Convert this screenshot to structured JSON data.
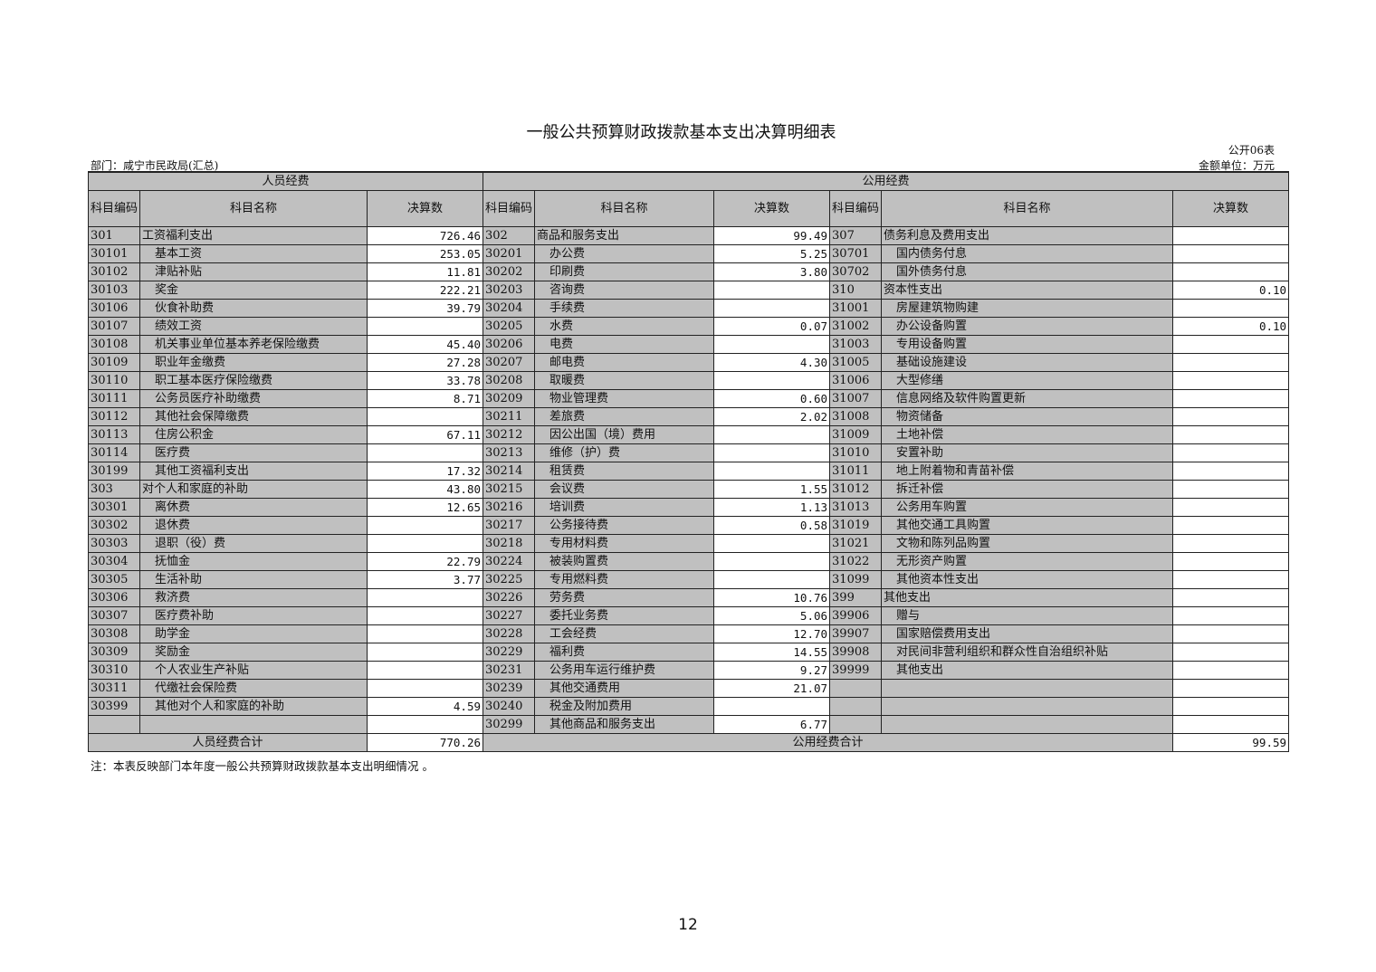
{
  "title": "一般公共预算财政拨款基本支出决算明细表",
  "form_no": "公开06表",
  "department": "部门：咸宁市民政局(汇总)",
  "unit": "金额单位：万元",
  "headers": {
    "personnel": "人员经费",
    "public": "公用经费",
    "code": "科目编码",
    "name": "科目名称",
    "amount": "决算数"
  },
  "personnel_rows": [
    [
      "301",
      "工资福利支出",
      "726.46"
    ],
    [
      "30101",
      "基本工资",
      "253.05"
    ],
    [
      "30102",
      "津贴补贴",
      "11.81"
    ],
    [
      "30103",
      "奖金",
      "222.21"
    ],
    [
      "30106",
      "伙食补助费",
      "39.79"
    ],
    [
      "30107",
      "绩效工资",
      ""
    ],
    [
      "30108",
      "机关事业单位基本养老保险缴费",
      "45.40"
    ],
    [
      "30109",
      "职业年金缴费",
      "27.28"
    ],
    [
      "30110",
      "职工基本医疗保险缴费",
      "33.78"
    ],
    [
      "30111",
      "公务员医疗补助缴费",
      "8.71"
    ],
    [
      "30112",
      "其他社会保障缴费",
      ""
    ],
    [
      "30113",
      "住房公积金",
      "67.11"
    ],
    [
      "30114",
      "医疗费",
      ""
    ],
    [
      "30199",
      "其他工资福利支出",
      "17.32"
    ],
    [
      "303",
      "对个人和家庭的补助",
      "43.80"
    ],
    [
      "30301",
      "离休费",
      "12.65"
    ],
    [
      "30302",
      "退休费",
      ""
    ],
    [
      "30303",
      "退职（役）费",
      ""
    ],
    [
      "30304",
      "抚恤金",
      "22.79"
    ],
    [
      "30305",
      "生活补助",
      "3.77"
    ],
    [
      "30306",
      "救济费",
      ""
    ],
    [
      "30307",
      "医疗费补助",
      ""
    ],
    [
      "30308",
      "助学金",
      ""
    ],
    [
      "30309",
      "奖励金",
      ""
    ],
    [
      "30310",
      "个人农业生产补贴",
      ""
    ],
    [
      "30311",
      "代缴社会保险费",
      ""
    ],
    [
      "30399",
      "其他对个人和家庭的补助",
      "4.59"
    ],
    [
      "",
      "",
      ""
    ]
  ],
  "public_rows_a": [
    [
      "302",
      "商品和服务支出",
      "99.49"
    ],
    [
      "30201",
      "办公费",
      "5.25"
    ],
    [
      "30202",
      "印刷费",
      "3.80"
    ],
    [
      "30203",
      "咨询费",
      ""
    ],
    [
      "30204",
      "手续费",
      ""
    ],
    [
      "30205",
      "水费",
      "0.07"
    ],
    [
      "30206",
      "电费",
      ""
    ],
    [
      "30207",
      "邮电费",
      "4.30"
    ],
    [
      "30208",
      "取暖费",
      ""
    ],
    [
      "30209",
      "物业管理费",
      "0.60"
    ],
    [
      "30211",
      "差旅费",
      "2.02"
    ],
    [
      "30212",
      "因公出国（境）费用",
      ""
    ],
    [
      "30213",
      "维修（护）费",
      ""
    ],
    [
      "30214",
      "租赁费",
      ""
    ],
    [
      "30215",
      "会议费",
      "1.55"
    ],
    [
      "30216",
      "培训费",
      "1.13"
    ],
    [
      "30217",
      "公务接待费",
      "0.58"
    ],
    [
      "30218",
      "专用材料费",
      ""
    ],
    [
      "30224",
      "被装购置费",
      ""
    ],
    [
      "30225",
      "专用燃料费",
      ""
    ],
    [
      "30226",
      "劳务费",
      "10.76"
    ],
    [
      "30227",
      "委托业务费",
      "5.06"
    ],
    [
      "30228",
      "工会经费",
      "12.70"
    ],
    [
      "30229",
      "福利费",
      "14.55"
    ],
    [
      "30231",
      "公务用车运行维护费",
      "9.27"
    ],
    [
      "30239",
      "其他交通费用",
      "21.07"
    ],
    [
      "30240",
      "税金及附加费用",
      ""
    ],
    [
      "30299",
      "其他商品和服务支出",
      "6.77"
    ]
  ],
  "public_rows_b": [
    [
      "307",
      "债务利息及费用支出",
      ""
    ],
    [
      "30701",
      "国内债务付息",
      ""
    ],
    [
      "30702",
      "国外债务付息",
      ""
    ],
    [
      "310",
      "资本性支出",
      "0.10"
    ],
    [
      "31001",
      "房屋建筑物购建",
      ""
    ],
    [
      "31002",
      "办公设备购置",
      "0.10"
    ],
    [
      "31003",
      "专用设备购置",
      ""
    ],
    [
      "31005",
      "基础设施建设",
      ""
    ],
    [
      "31006",
      "大型修缮",
      ""
    ],
    [
      "31007",
      "信息网络及软件购置更新",
      ""
    ],
    [
      "31008",
      "物资储备",
      ""
    ],
    [
      "31009",
      "土地补偿",
      ""
    ],
    [
      "31010",
      "安置补助",
      ""
    ],
    [
      "31011",
      "地上附着物和青苗补偿",
      ""
    ],
    [
      "31012",
      "拆迁补偿",
      ""
    ],
    [
      "31013",
      "公务用车购置",
      ""
    ],
    [
      "31019",
      "其他交通工具购置",
      ""
    ],
    [
      "31021",
      "文物和陈列品购置",
      ""
    ],
    [
      "31022",
      "无形资产购置",
      ""
    ],
    [
      "31099",
      "其他资本性支出",
      ""
    ],
    [
      "399",
      "其他支出",
      ""
    ],
    [
      "39906",
      "赠与",
      ""
    ],
    [
      "39907",
      "国家赔偿费用支出",
      ""
    ],
    [
      "39908",
      "对民间非营利组织和群众性自治组织补贴",
      ""
    ],
    [
      "39999",
      "其他支出",
      ""
    ],
    [
      "",
      "",
      ""
    ],
    [
      "",
      "",
      ""
    ],
    [
      "",
      "",
      ""
    ]
  ],
  "totals": {
    "personnel_label": "人员经费合计",
    "personnel_value": "770.26",
    "public_label": "公用经费合计",
    "public_value": "99.59"
  },
  "note": "注：本表反映部门本年度一般公共预算财政拨款基本支出明细情况 。",
  "page_number": "12",
  "colors": {
    "header_fill": "#c0c0c0",
    "value_fill": "#ffffff",
    "border": "#222222"
  }
}
